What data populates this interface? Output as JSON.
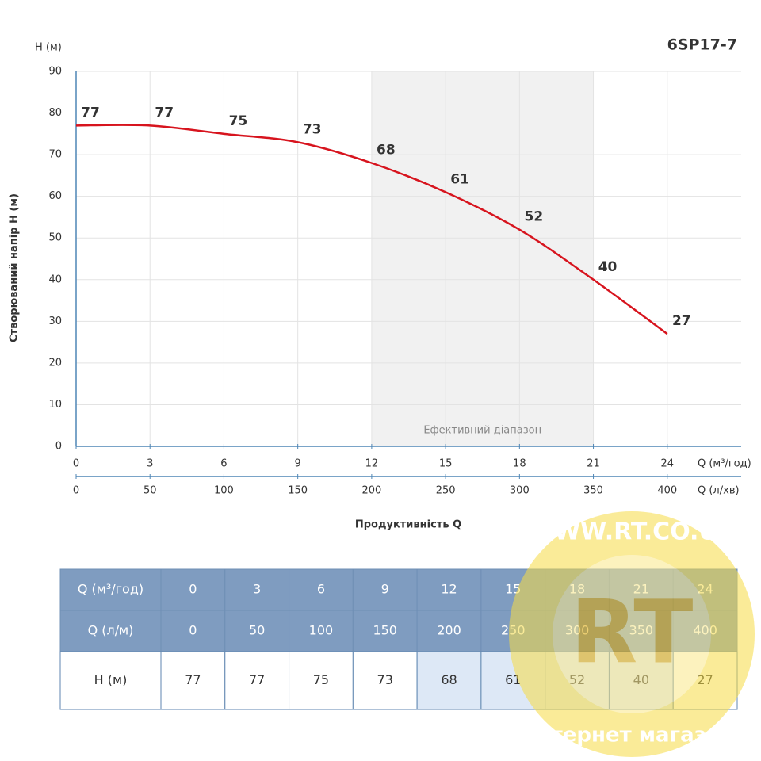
{
  "chart_data": {
    "type": "line",
    "title": "6SP17-7",
    "y_unit_label": "Н (м)",
    "y_label": "Створюваний напір Н (м)",
    "x_label": "Продуктивність Q",
    "x_unit_label": "Q (м³/год)",
    "x2_unit_label": "Q (л/хв)",
    "x": [
      0,
      3,
      6,
      9,
      12,
      15,
      18,
      21,
      24
    ],
    "series": [
      {
        "color": "#d7141e",
        "values": [
          77,
          77,
          75,
          73,
          68,
          61,
          52,
          40,
          27
        ]
      }
    ],
    "xlim": [
      0,
      27
    ],
    "xticks": [
      0,
      3,
      6,
      9,
      12,
      15,
      18,
      21,
      24
    ],
    "x2lim": [
      0,
      450
    ],
    "x2ticks": [
      0,
      50,
      100,
      150,
      200,
      250,
      300,
      350,
      400
    ],
    "ylim": [
      0,
      90
    ],
    "yticks": [
      0,
      10,
      20,
      30,
      40,
      50,
      60,
      70,
      80,
      90
    ],
    "grid": true,
    "highlight_range": [
      12,
      21
    ],
    "highlight_label": "Ефективний діапазон"
  },
  "table": {
    "rows": [
      [
        "Q (м³/год)",
        0,
        3,
        6,
        9,
        12,
        15,
        18,
        21,
        24
      ],
      [
        "Q (л/м)",
        0,
        50,
        100,
        150,
        200,
        250,
        300,
        350,
        400
      ],
      [
        "Н (м)",
        77,
        77,
        75,
        73,
        68,
        61,
        52,
        40,
        27
      ]
    ]
  },
  "watermark": {
    "url": "WWW.RT.CO.UA",
    "logo": "RT",
    "caption": "Інтернет магазин"
  }
}
